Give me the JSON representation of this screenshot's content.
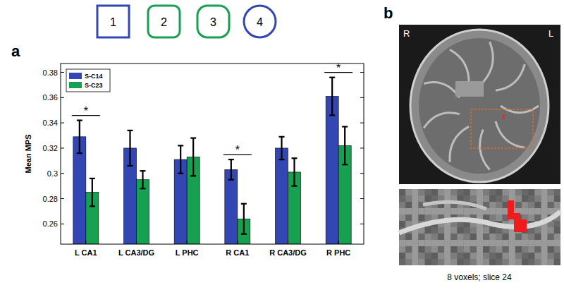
{
  "chart_data": {
    "type": "bar",
    "y_label": "Mean MPS",
    "categories": [
      "L CA1",
      "L CA3/DG",
      "L PHC",
      "R CA1",
      "R CA3/DG",
      "R PHC"
    ],
    "series": [
      {
        "name": "S-C14",
        "color": "#3246b4",
        "values": [
          0.329,
          0.32,
          0.311,
          0.303,
          0.32,
          0.361
        ],
        "errors": [
          0.013,
          0.014,
          0.011,
          0.008,
          0.009,
          0.015
        ]
      },
      {
        "name": "S-C23",
        "color": "#16a050",
        "values": [
          0.285,
          0.295,
          0.313,
          0.264,
          0.301,
          0.322
        ],
        "errors": [
          0.011,
          0.007,
          0.015,
          0.012,
          0.011,
          0.015
        ]
      }
    ],
    "significance": [
      {
        "category": "L CA1",
        "text": "*"
      },
      {
        "category": "R CA1",
        "text": "*"
      },
      {
        "category": "R PHC",
        "text": "*"
      }
    ],
    "ylim": [
      0.244,
      0.387
    ],
    "yticks": [
      0.26,
      0.28,
      0.3,
      0.32,
      0.34,
      0.36,
      0.38
    ],
    "legend": "upper left",
    "grid": false
  },
  "figure": {
    "panel_labels": [
      "a",
      "b"
    ],
    "stimuli": [
      {
        "label": "1",
        "shape": "square",
        "color": "#3246b4"
      },
      {
        "label": "2",
        "shape": "rounded",
        "color": "#16a050"
      },
      {
        "label": "3",
        "shape": "rounded",
        "color": "#16a050"
      },
      {
        "label": "4",
        "shape": "circle",
        "color": "#3246b4"
      }
    ],
    "image": {
      "orientation_labels": [
        "R",
        "L"
      ],
      "caption": "8 voxels; slice 24"
    }
  }
}
